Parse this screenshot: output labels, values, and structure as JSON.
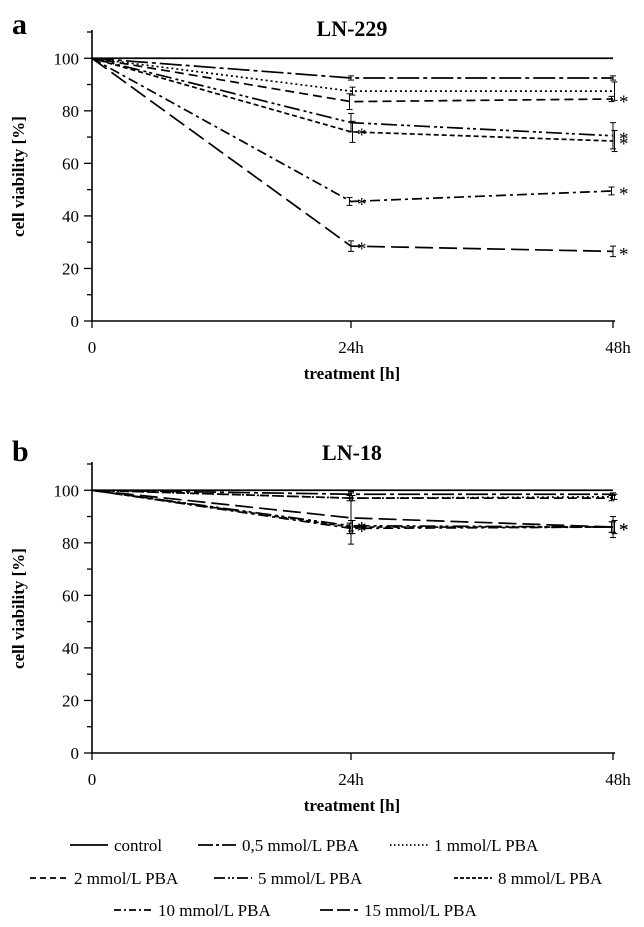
{
  "chart_data": [
    {
      "panel_label": "a",
      "type": "line",
      "title": "LN-229",
      "xlabel": "treatment [h]",
      "ylabel": "cell viability [%]",
      "x": [
        "0",
        "24h",
        "48h"
      ],
      "yticks": [
        0,
        20,
        40,
        60,
        80,
        100
      ],
      "ylim": [
        0,
        110
      ],
      "grid": false,
      "series": [
        {
          "name": "control",
          "style": "solid",
          "values": [
            100,
            100,
            100
          ],
          "err": [
            0,
            0,
            0
          ],
          "sig": [
            "",
            "",
            ""
          ]
        },
        {
          "name": "0,5 mmol/L PBA",
          "style": "longdashdot",
          "values": [
            100,
            92.5,
            92.5
          ],
          "err": [
            0,
            0.8,
            0.8
          ],
          "sig": [
            "",
            "",
            ""
          ]
        },
        {
          "name": "1 mmol/L PBA",
          "style": "dotted",
          "values": [
            100,
            87.5,
            87.5
          ],
          "err": [
            0,
            1.5,
            3.5
          ],
          "sig": [
            "",
            "",
            ""
          ]
        },
        {
          "name": "2 mmol/L PBA",
          "style": "dashed",
          "values": [
            100,
            83.5,
            84.5
          ],
          "err": [
            0,
            3,
            1
          ],
          "sig": [
            "",
            "",
            "*"
          ]
        },
        {
          "name": "5 mmol/L PBA",
          "style": "longdashdotdot",
          "values": [
            100,
            75.5,
            70.5
          ],
          "err": [
            0,
            3.5,
            5
          ],
          "sig": [
            "",
            "",
            "*"
          ]
        },
        {
          "name": "8 mmol/L PBA",
          "style": "shortdash",
          "values": [
            100,
            72,
            68.5
          ],
          "err": [
            0,
            4,
            4
          ],
          "sig": [
            "",
            "*",
            "*"
          ]
        },
        {
          "name": "10 mmol/L PBA",
          "style": "dashdot",
          "values": [
            100,
            45.5,
            49.5
          ],
          "err": [
            0,
            1.5,
            1.5
          ],
          "sig": [
            "",
            "*",
            "*"
          ]
        },
        {
          "name": "15 mmol/L PBA",
          "style": "longdash",
          "values": [
            100,
            28.5,
            26.5
          ],
          "err": [
            0,
            2,
            2
          ],
          "sig": [
            "",
            "*",
            "*"
          ]
        }
      ]
    },
    {
      "panel_label": "b",
      "type": "line",
      "title": "LN-18",
      "xlabel": "treatment [h]",
      "ylabel": "cell viability [%]",
      "x": [
        "0",
        "24h",
        "48h"
      ],
      "yticks": [
        0,
        20,
        40,
        60,
        80,
        100
      ],
      "ylim": [
        0,
        110
      ],
      "grid": false,
      "series": [
        {
          "name": "control",
          "style": "solid",
          "values": [
            100,
            100,
            100
          ],
          "err": [
            0,
            0,
            0
          ],
          "sig": [
            "",
            "",
            ""
          ]
        },
        {
          "name": "0,5 mmol/L PBA",
          "style": "longdashdot",
          "values": [
            100,
            98.5,
            98.5
          ],
          "err": [
            0,
            0.5,
            0.5
          ],
          "sig": [
            "",
            "",
            ""
          ]
        },
        {
          "name": "1 mmol/L PBA",
          "style": "dotted",
          "values": [
            100,
            97,
            97.5
          ],
          "err": [
            0,
            1,
            1
          ],
          "sig": [
            "",
            "",
            ""
          ]
        },
        {
          "name": "2 mmol/L PBA",
          "style": "dashed",
          "values": [
            100,
            97,
            97
          ],
          "err": [
            0,
            1,
            1
          ],
          "sig": [
            "",
            "",
            ""
          ]
        },
        {
          "name": "5 mmol/L PBA",
          "style": "longdashdotdot",
          "values": [
            100,
            86.5,
            86
          ],
          "err": [
            0,
            2,
            2
          ],
          "sig": [
            "",
            "*",
            "*"
          ]
        },
        {
          "name": "8 mmol/L PBA",
          "style": "shortdash",
          "values": [
            100,
            86,
            86
          ],
          "err": [
            0,
            2.5,
            2.5
          ],
          "sig": [
            "",
            "*",
            "*"
          ]
        },
        {
          "name": "10 mmol/L PBA",
          "style": "dashdot",
          "values": [
            100,
            85.5,
            86
          ],
          "err": [
            0,
            2,
            2
          ],
          "sig": [
            "",
            "*",
            ""
          ]
        },
        {
          "name": "15 mmol/L PBA",
          "style": "longdash",
          "values": [
            100,
            89.5,
            86
          ],
          "err": [
            0,
            10,
            4
          ],
          "sig": [
            "",
            "",
            ""
          ]
        }
      ]
    }
  ],
  "legend": {
    "placement": "bottom",
    "items": [
      "control",
      "0,5 mmol/L PBA",
      "1 mmol/L PBA",
      "2 mmol/L PBA",
      "5 mmol/L PBA",
      "8 mmol/L PBA",
      "10 mmol/L PBA",
      "15 mmol/L PBA"
    ]
  }
}
